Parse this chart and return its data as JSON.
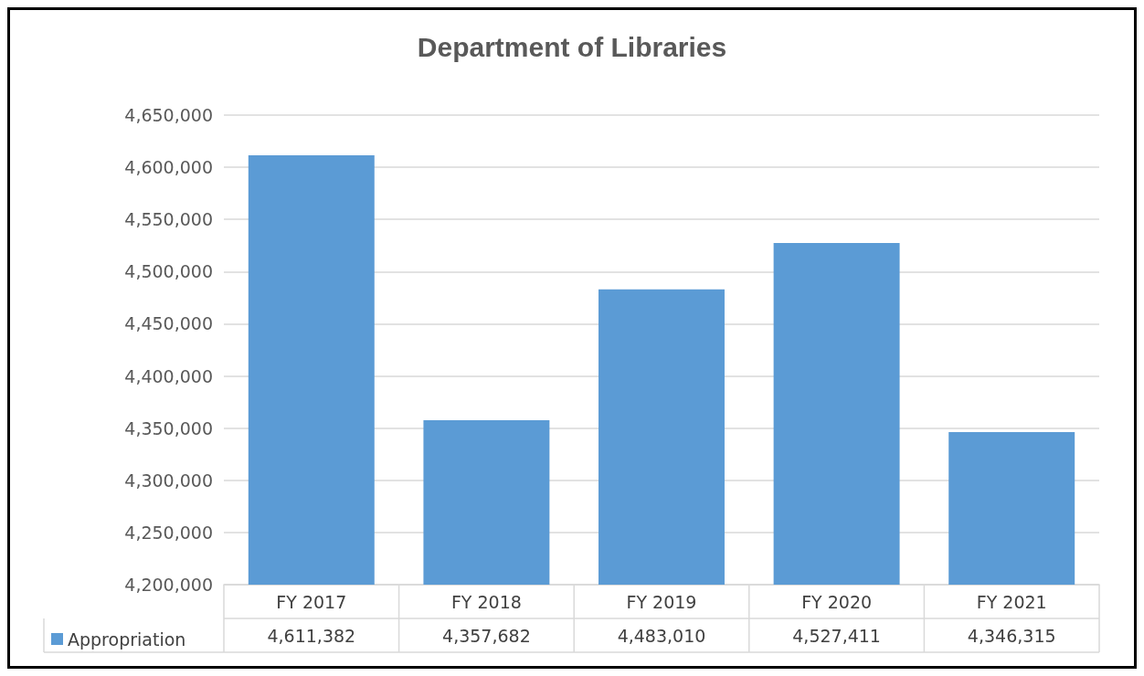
{
  "chart_data": {
    "type": "bar",
    "title": "Department of Libraries",
    "categories": [
      "FY 2017",
      "FY 2018",
      "FY 2019",
      "FY 2020",
      "FY 2021"
    ],
    "series": [
      {
        "name": "Appropriation",
        "color": "#5b9bd5",
        "values": [
          4611382,
          4357682,
          4483010,
          4527411,
          4346315
        ],
        "value_labels": [
          "4,611,382",
          "4,357,682",
          "4,483,010",
          "4,527,411",
          "4,346,315"
        ]
      }
    ],
    "ylim": [
      4200000,
      4650000
    ],
    "yticks": [
      {
        "value": 4200000,
        "label": "4,200,000"
      },
      {
        "value": 4250000,
        "label": "4,250,000"
      },
      {
        "value": 4300000,
        "label": "4,300,000"
      },
      {
        "value": 4350000,
        "label": "4,350,000"
      },
      {
        "value": 4400000,
        "label": "4,400,000"
      },
      {
        "value": 4450000,
        "label": "4,450,000"
      },
      {
        "value": 4500000,
        "label": "4,500,000"
      },
      {
        "value": 4550000,
        "label": "4,550,000"
      },
      {
        "value": 4600000,
        "label": "4,600,000"
      },
      {
        "value": 4650000,
        "label": "4,650,000"
      }
    ],
    "grid": "y",
    "legend": "bottom"
  }
}
